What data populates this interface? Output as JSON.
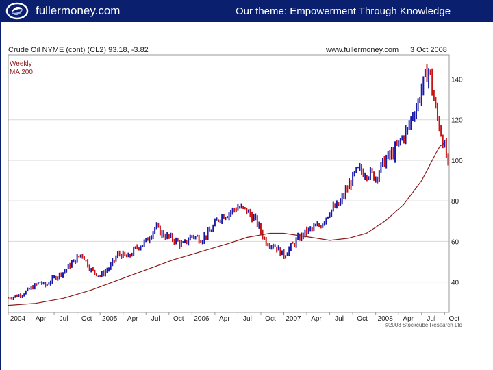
{
  "header": {
    "brand": "fullermoney.com",
    "theme": "Our theme: Empowerment Through Knowledge",
    "logo_icon": "swirl-logo-icon"
  },
  "chart_data": {
    "type": "candlestick",
    "title": "Crude Oil NYME (cont) (CL2) 93.18, -3.82",
    "source": "www.fullermoney.com",
    "date": "3 Oct 2008",
    "frequency": "Weekly",
    "ma_label": "MA 200",
    "copyright": "©2008 Stockcube Research Ltd",
    "x_ticks": [
      "2004",
      "Apr",
      "Jul",
      "Oct",
      "2005",
      "Apr",
      "Jul",
      "Oct",
      "2006",
      "Apr",
      "Jul",
      "Oct",
      "2007",
      "Apr",
      "Jul",
      "Oct",
      "2008",
      "Apr",
      "Jul",
      "Oct"
    ],
    "y_ticks": [
      40,
      60,
      80,
      100,
      120,
      140
    ],
    "ylim": [
      25,
      152
    ],
    "xlim": [
      2004.0,
      2008.8
    ],
    "ma_values": [
      [
        2004.0,
        28.5
      ],
      [
        2004.3,
        29.5
      ],
      [
        2004.6,
        32
      ],
      [
        2004.9,
        36
      ],
      [
        2005.2,
        41
      ],
      [
        2005.5,
        46
      ],
      [
        2005.8,
        51
      ],
      [
        2006.1,
        55
      ],
      [
        2006.4,
        59
      ],
      [
        2006.6,
        62
      ],
      [
        2006.85,
        64
      ],
      [
        2007.0,
        64
      ],
      [
        2007.3,
        62
      ],
      [
        2007.5,
        60.5
      ],
      [
        2007.7,
        61.5
      ],
      [
        2007.9,
        64
      ],
      [
        2008.1,
        70
      ],
      [
        2008.3,
        78
      ],
      [
        2008.5,
        90
      ],
      [
        2008.65,
        103
      ],
      [
        2008.7,
        107
      ],
      [
        2008.75,
        108.5
      ]
    ],
    "series": [
      {
        "name": "up",
        "color": "#1a1aa8"
      },
      {
        "name": "down",
        "color": "#c81414"
      }
    ],
    "ma_color": "#8b1a1a",
    "weekly_close_path": [
      [
        2004.0,
        32
      ],
      [
        2004.15,
        34
      ],
      [
        2004.25,
        37
      ],
      [
        2004.35,
        40
      ],
      [
        2004.4,
        38
      ],
      [
        2004.5,
        42
      ],
      [
        2004.6,
        45
      ],
      [
        2004.8,
        54
      ],
      [
        2004.9,
        46
      ],
      [
        2005.0,
        43
      ],
      [
        2005.1,
        47
      ],
      [
        2005.2,
        54
      ],
      [
        2005.3,
        52
      ],
      [
        2005.4,
        57
      ],
      [
        2005.5,
        60
      ],
      [
        2005.6,
        67
      ],
      [
        2005.7,
        63
      ],
      [
        2005.8,
        61
      ],
      [
        2005.9,
        58
      ],
      [
        2006.0,
        63
      ],
      [
        2006.1,
        61
      ],
      [
        2006.2,
        65
      ],
      [
        2006.3,
        72
      ],
      [
        2006.4,
        74
      ],
      [
        2006.5,
        77
      ],
      [
        2006.6,
        75
      ],
      [
        2006.7,
        70
      ],
      [
        2006.8,
        60
      ],
      [
        2006.9,
        58
      ],
      [
        2007.0,
        53
      ],
      [
        2007.05,
        56
      ],
      [
        2007.15,
        61
      ],
      [
        2007.25,
        65
      ],
      [
        2007.4,
        68
      ],
      [
        2007.5,
        75
      ],
      [
        2007.6,
        78
      ],
      [
        2007.7,
        87
      ],
      [
        2007.8,
        95
      ],
      [
        2007.9,
        94
      ],
      [
        2008.0,
        92
      ],
      [
        2008.1,
        100
      ],
      [
        2008.2,
        104
      ],
      [
        2008.3,
        112
      ],
      [
        2008.35,
        115
      ],
      [
        2008.4,
        123
      ],
      [
        2008.45,
        127
      ],
      [
        2008.5,
        135
      ],
      [
        2008.55,
        142
      ],
      [
        2008.58,
        145
      ],
      [
        2008.6,
        140
      ],
      [
        2008.65,
        125
      ],
      [
        2008.7,
        116
      ],
      [
        2008.75,
        106
      ],
      [
        2008.78,
        100
      ],
      [
        2008.8,
        93
      ]
    ]
  }
}
